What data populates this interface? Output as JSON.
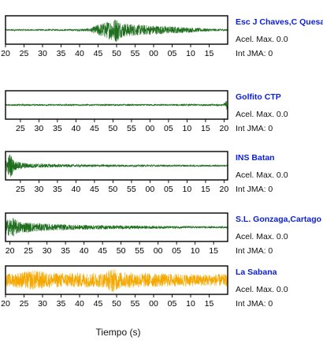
{
  "chart_data": {
    "type": "line",
    "xlabel": "Tiempo (s)",
    "acel_label": "Acel. Max.",
    "jma_label": "Int JMA:",
    "panels": [
      {
        "station": "Esc J Chaves,C Quesada",
        "acel_max": "0.0",
        "int_jma": "0",
        "color": "#1e6e1e",
        "tick_labels": [
          "20",
          "25",
          "30",
          "35",
          "40",
          "45",
          "50",
          "55",
          "00",
          "05",
          "10",
          "15"
        ],
        "first_tick": 0.0,
        "envelope": [
          [
            0.0,
            0.05
          ],
          [
            0.3,
            0.06
          ],
          [
            0.38,
            0.12
          ],
          [
            0.42,
            0.45
          ],
          [
            0.47,
            0.7
          ],
          [
            0.5,
            0.95
          ],
          [
            0.52,
            0.55
          ],
          [
            0.6,
            0.4
          ],
          [
            0.7,
            0.32
          ],
          [
            0.8,
            0.22
          ],
          [
            0.9,
            0.12
          ],
          [
            1.0,
            0.07
          ]
        ]
      },
      {
        "station": "Golfito CTP",
        "acel_max": "0.0",
        "int_jma": "0",
        "color": "#1e6e1e",
        "tick_labels": [
          "25",
          "30",
          "35",
          "40",
          "45",
          "50",
          "55",
          "00",
          "05",
          "10",
          "15",
          "20"
        ],
        "first_tick": 0.067,
        "envelope": [
          [
            0.0,
            0.06
          ],
          [
            0.5,
            0.06
          ],
          [
            0.98,
            0.07
          ],
          [
            1.0,
            0.45
          ]
        ]
      },
      {
        "station": "INS Batan",
        "acel_max": "0.0",
        "int_jma": "0",
        "color": "#1e6e1e",
        "tick_labels": [
          "25",
          "30",
          "35",
          "40",
          "45",
          "50",
          "55",
          "00",
          "05",
          "10",
          "15",
          "20"
        ],
        "first_tick": 0.067,
        "envelope": [
          [
            0.0,
            0.3
          ],
          [
            0.02,
            1.0
          ],
          [
            0.04,
            0.35
          ],
          [
            0.1,
            0.18
          ],
          [
            0.3,
            0.1
          ],
          [
            0.6,
            0.08
          ],
          [
            1.0,
            0.06
          ]
        ]
      },
      {
        "station": "S.L. Gonzaga,Cartago",
        "acel_max": "0.0",
        "int_jma": "0",
        "color": "#1e6e1e",
        "tick_labels": [
          "20",
          "25",
          "30",
          "35",
          "40",
          "45",
          "50",
          "55",
          "00",
          "05",
          "10",
          "15"
        ],
        "first_tick": 0.02,
        "envelope": [
          [
            0.0,
            0.55
          ],
          [
            0.03,
            0.75
          ],
          [
            0.06,
            0.45
          ],
          [
            0.12,
            0.35
          ],
          [
            0.2,
            0.25
          ],
          [
            0.35,
            0.18
          ],
          [
            0.5,
            0.14
          ],
          [
            0.7,
            0.1
          ],
          [
            1.0,
            0.06
          ]
        ]
      },
      {
        "station": "La Sabana",
        "acel_max": "0.0",
        "int_jma": "0",
        "color": "#f4a800",
        "tick_labels": [
          "20",
          "25",
          "30",
          "35",
          "40",
          "45",
          "50",
          "55",
          "00",
          "05",
          "10",
          "15"
        ],
        "first_tick": 0.0,
        "envelope": [
          [
            0.0,
            0.45
          ],
          [
            0.13,
            0.75
          ],
          [
            0.2,
            0.55
          ],
          [
            0.3,
            0.55
          ],
          [
            0.45,
            0.55
          ],
          [
            0.48,
            0.95
          ],
          [
            0.52,
            0.6
          ],
          [
            0.7,
            0.5
          ],
          [
            0.85,
            0.45
          ],
          [
            1.0,
            0.45
          ]
        ]
      }
    ]
  }
}
